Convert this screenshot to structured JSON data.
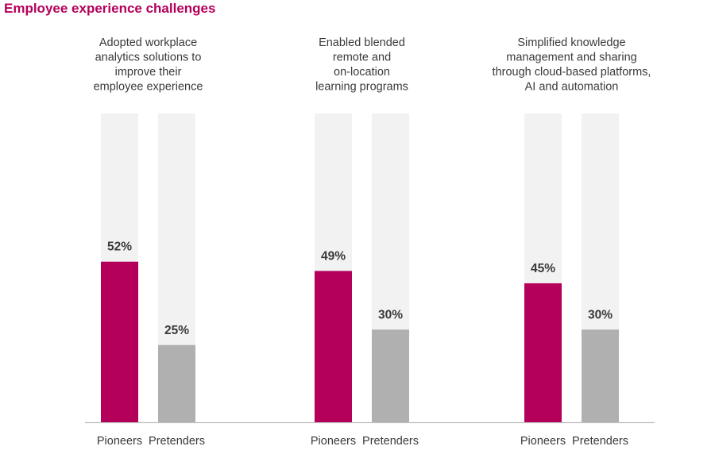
{
  "chart_data": {
    "type": "bar",
    "title": "Employee experience challenges",
    "ylim": [
      0,
      100
    ],
    "categories": [
      "Adopted workplace analytics solutions to improve their employee experience",
      "Enabled blended remote and on-location learning programs",
      "Simplified knowledge management and sharing through cloud-based platforms, AI and automation"
    ],
    "category_lines": [
      [
        "Adopted workplace",
        "analytics solutions to",
        "improve their",
        "employee experience"
      ],
      [
        "Enabled blended",
        "remote and",
        "on-location",
        "learning programs"
      ],
      [
        "Simplified knowledge",
        "management and sharing",
        "through cloud-based platforms,",
        "AI and automation"
      ]
    ],
    "series": [
      {
        "name": "Pioneers",
        "values": [
          52,
          49,
          45
        ],
        "labels": [
          "52%",
          "49%",
          "45%"
        ],
        "color": "#b4005a"
      },
      {
        "name": "Pretenders",
        "values": [
          25,
          30,
          30
        ],
        "labels": [
          "25%",
          "30%",
          "30%"
        ],
        "color": "#b0b0b0"
      }
    ],
    "background_bar_color": "#f2f2f2",
    "axis_color": "#bfbfbf"
  }
}
